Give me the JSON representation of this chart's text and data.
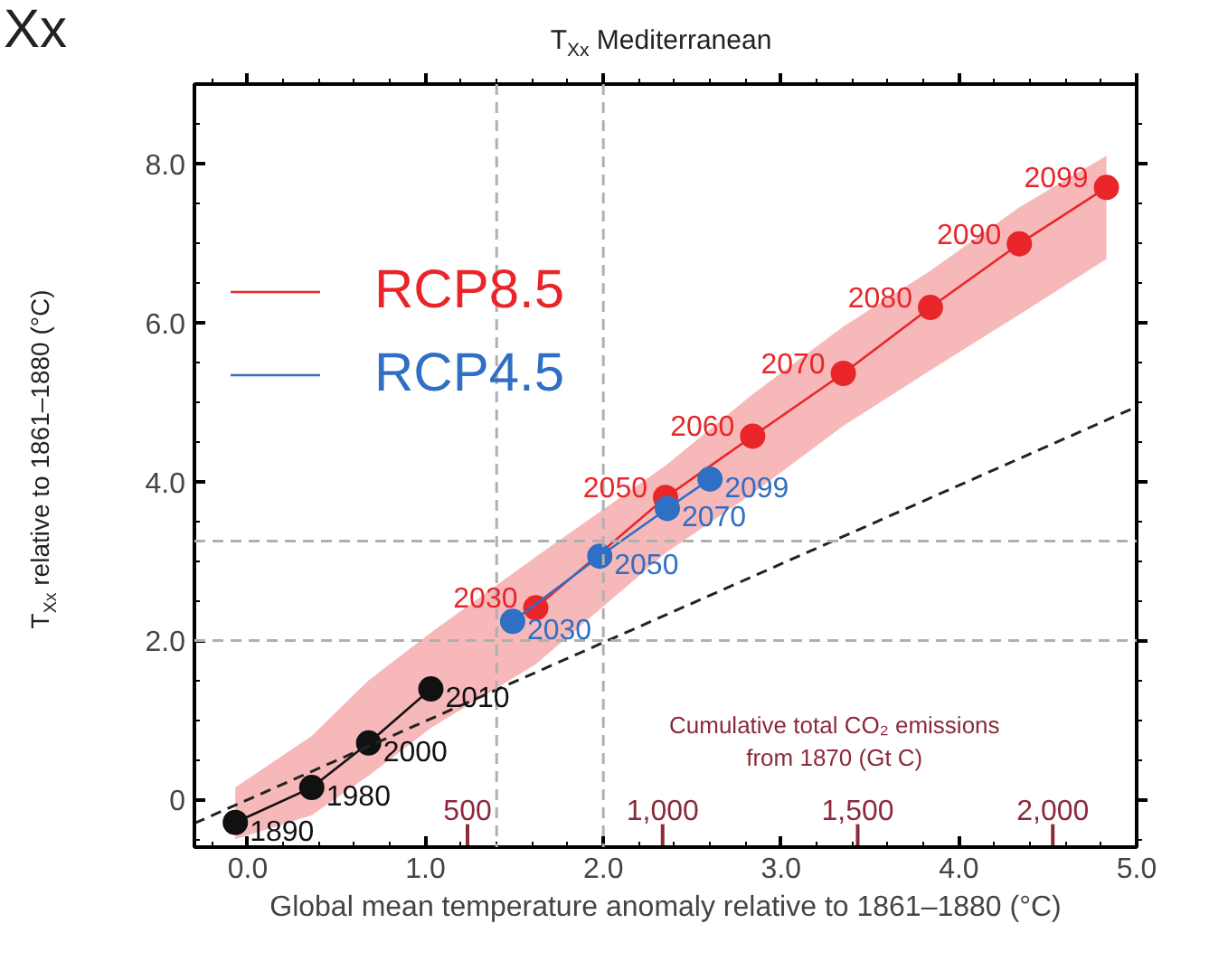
{
  "chart_data": {
    "type": "line",
    "title": "T$_{Xx}$ Mediterranean",
    "xlabel": "Global mean temperature anomaly relative to 1861–1880 (°C)",
    "ylabel": "T$_{Xx}$ relative to 1861–1880 (°C)",
    "x2label": "Cumulative total CO₂ emissions from 1870 (Gt C)",
    "annotations": [
      "Xx",
      {
        "text": "2030",
        "x": 1.62,
        "y": 2.41
      },
      {
        "text": "2050",
        "x": 2.35,
        "y": 3.8
      },
      {
        "text": "2060",
        "x": 2.84,
        "y": 4.57
      },
      {
        "text": "2070",
        "x": 3.35,
        "y": 5.36
      },
      {
        "text": "2080",
        "x": 3.84,
        "y": 6.19
      },
      {
        "text": "2090",
        "x": 4.34,
        "y": 6.99
      },
      {
        "text": "2099",
        "x": 4.83,
        "y": 7.7
      },
      {
        "text": "2030",
        "x": 1.49,
        "y": 2.24
      },
      {
        "text": "2050",
        "x": 1.98,
        "y": 3.06
      },
      {
        "text": "2070",
        "x": 2.36,
        "y": 3.66
      },
      {
        "text": "2099",
        "x": 2.6,
        "y": 4.03
      },
      {
        "text": "1890",
        "x": -0.07,
        "y": -0.29
      },
      {
        "text": "1980",
        "x": 0.36,
        "y": 0.15
      },
      {
        "text": "2000",
        "x": 0.68,
        "y": 0.71
      },
      {
        "text": "2010",
        "x": 1.03,
        "y": 1.39
      }
    ],
    "xlim": [
      -0.3,
      5.0
    ],
    "ylim": [
      -0.6,
      9.0
    ],
    "xticks": [
      {
        "value": 0,
        "label": "0.0"
      },
      {
        "value": 1,
        "label": "1.0"
      },
      {
        "value": 2,
        "label": "2.0"
      },
      {
        "value": 3,
        "label": "3.0"
      },
      {
        "value": 4,
        "label": "4.0"
      },
      {
        "value": 5,
        "label": "5.0"
      },
      {
        "value": -0.2,
        "label": null
      },
      {
        "value": 0.2,
        "label": null
      },
      {
        "value": 0.4,
        "label": null
      },
      {
        "value": 0.6,
        "label": null
      },
      {
        "value": 0.8,
        "label": null
      },
      {
        "value": 1.2,
        "label": null
      },
      {
        "value": 1.4,
        "label": null
      },
      {
        "value": 1.6,
        "label": null
      },
      {
        "value": 1.8,
        "label": null
      },
      {
        "value": 2.2,
        "label": null
      },
      {
        "value": 2.4,
        "label": null
      },
      {
        "value": 2.6,
        "label": null
      },
      {
        "value": 2.8,
        "label": null
      },
      {
        "value": 3.2,
        "label": null
      },
      {
        "value": 3.4,
        "label": null
      },
      {
        "value": 3.6,
        "label": null
      },
      {
        "value": 3.8,
        "label": null
      },
      {
        "value": 4.2,
        "label": null
      },
      {
        "value": 4.4,
        "label": null
      },
      {
        "value": 4.6,
        "label": null
      },
      {
        "value": 4.8,
        "label": null
      }
    ],
    "yticks": [
      0,
      {
        "value": 2,
        "label": "2.0"
      },
      {
        "value": 4,
        "label": "4.0"
      },
      {
        "value": 6,
        "label": "6.0"
      },
      {
        "value": 8,
        "label": "8.0"
      },
      {
        "value": -0.5,
        "label": null
      },
      {
        "value": 0.5,
        "label": null
      },
      {
        "value": 1,
        "label": null
      },
      {
        "value": 1.5,
        "label": null
      },
      {
        "value": 2.5,
        "label": null
      },
      {
        "value": 3,
        "label": null
      },
      {
        "value": 3.5,
        "label": null
      },
      {
        "value": 4.5,
        "label": null
      },
      {
        "value": 5,
        "label": null
      },
      {
        "value": 5.5,
        "label": null
      },
      {
        "value": 6.5,
        "label": null
      },
      {
        "value": 7,
        "label": null
      },
      {
        "value": 7.5,
        "label": null
      },
      {
        "value": 8.5,
        "label": null
      }
    ],
    "x2lim": [
      -200,
      2215
    ],
    "x2ticks": [
      500,
      {
        "value": 1000,
        "label": "1,000"
      },
      {
        "value": 1500,
        "label": "1,500"
      },
      {
        "value": 2000,
        "label": "2,000"
      }
    ],
    "ref_lines": [
      {
        "axis": "x",
        "value": 1.4,
        "color": "#b0b0b0",
        "line_style": "dashed"
      },
      {
        "axis": "x",
        "value": 2.0,
        "color": "#b0b0b0",
        "line_style": "dashed"
      },
      {
        "axis": "y",
        "value": 2.0,
        "color": "#b0b0b0",
        "line_style": "dashed"
      },
      {
        "axis": "y",
        "value": 3.25,
        "color": "#b0b0b0",
        "line_style": "dashed"
      }
    ],
    "legend": "top left",
    "grid": false,
    "marker": "circle",
    "line_style": "solid",
    "series": [
      {
        "name": "RCP8.5",
        "color": "#e8262a",
        "x": [
          -0.07,
          0.36,
          0.68,
          1.03,
          1.62,
          2.35,
          2.84,
          3.35,
          3.84,
          4.34,
          4.83
        ],
        "values": [
          null,
          null,
          null,
          null,
          2.41,
          3.8,
          4.57,
          5.36,
          6.19,
          6.99,
          7.7
        ],
        "lower": [
          -0.5,
          -0.2,
          0.3,
          0.9,
          1.7,
          3.1,
          3.85,
          4.7,
          5.4,
          6.1,
          6.8
        ],
        "upper": [
          0.15,
          0.8,
          1.5,
          2.1,
          3.05,
          4.2,
          5.1,
          5.95,
          6.65,
          7.45,
          8.1
        ]
      },
      {
        "name": "RCP4.5",
        "color": "#2f6fc4",
        "x": [
          1.49,
          1.98,
          2.36,
          2.6
        ],
        "values": [
          2.24,
          3.06,
          3.66,
          4.03
        ]
      },
      {
        "color": "#111111",
        "x": [
          -0.07,
          0.36,
          0.68,
          1.03
        ],
        "values": [
          -0.29,
          0.15,
          0.71,
          1.39
        ]
      },
      {
        "type": "line",
        "color": "#222222",
        "marker": "none",
        "line_style": "dashed",
        "x": [
          -0.3,
          5.0
        ],
        "values": [
          -0.3,
          4.94
        ]
      }
    ]
  }
}
